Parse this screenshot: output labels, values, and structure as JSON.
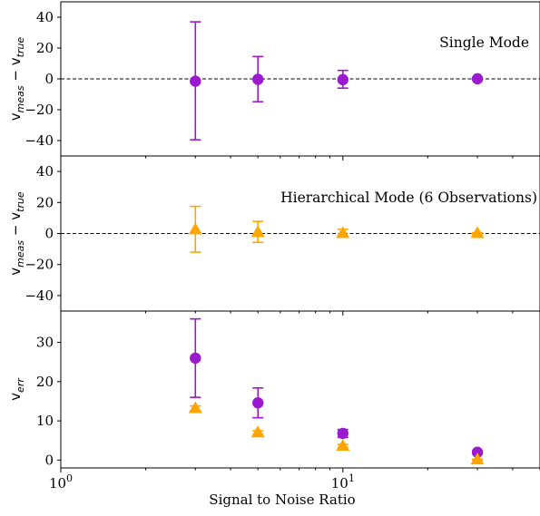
{
  "chart_data": [
    {
      "type": "scatter",
      "panel": "top",
      "title": "",
      "ylabel_parts": [
        "v",
        "meas",
        " − v",
        "true"
      ],
      "ylim": [
        -50,
        50
      ],
      "yticks": [
        -40,
        -20,
        0,
        20,
        40
      ],
      "ytick_labels": [
        "−40",
        "−20",
        "0",
        "20",
        "40"
      ],
      "x_scale": "log",
      "xlim": [
        1,
        50
      ],
      "reference_line": 0,
      "annotation": "Single Mode",
      "series": [
        {
          "marker": "circle",
          "color": "#9b19cf",
          "x": [
            3,
            5,
            10,
            30
          ],
          "y": [
            -1.5,
            -0.3,
            -0.5,
            0.1
          ],
          "yerr_low": [
            38,
            14.5,
            5.5,
            0.5
          ],
          "yerr_high": [
            38.5,
            14.8,
            6,
            0.5
          ]
        }
      ]
    },
    {
      "type": "scatter",
      "panel": "middle",
      "title": "",
      "ylabel_parts": [
        "v",
        "meas",
        " − v",
        "true"
      ],
      "ylim": [
        -50,
        50
      ],
      "yticks": [
        -40,
        -20,
        0,
        20,
        40
      ],
      "ytick_labels": [
        "−40",
        "−20",
        "0",
        "20",
        "40"
      ],
      "x_scale": "log",
      "xlim": [
        1,
        50
      ],
      "reference_line": 0,
      "annotation": "Hierarchical Mode (6 Observations)",
      "series": [
        {
          "marker": "triangle",
          "color": "#ffa500",
          "x": [
            3,
            5,
            10,
            30
          ],
          "y": [
            2.5,
            0.8,
            0.2,
            0.1
          ],
          "yerr_low": [
            14.5,
            6.5,
            2.5,
            0.4
          ],
          "yerr_high": [
            15,
            7,
            2.5,
            0.4
          ]
        }
      ]
    },
    {
      "type": "scatter",
      "panel": "bottom",
      "title": "",
      "ylabel_parts": [
        "v",
        "err",
        "",
        ""
      ],
      "ylim": [
        -2,
        38
      ],
      "yticks": [
        0,
        10,
        20,
        30
      ],
      "ytick_labels": [
        "0",
        "10",
        "20",
        "30"
      ],
      "x_scale": "log",
      "xlim": [
        1,
        50
      ],
      "xticks": [
        1,
        10
      ],
      "xtick_labels": [
        {
          "base": "10",
          "exp": "0"
        },
        {
          "base": "10",
          "exp": "1"
        }
      ],
      "xlabel": "Signal to Noise Ratio",
      "series": [
        {
          "marker": "circle",
          "color": "#9b19cf",
          "x": [
            3,
            5,
            10,
            30
          ],
          "y": [
            26,
            14.6,
            6.8,
            2
          ],
          "yerr_low": [
            10,
            3.8,
            1,
            0.3
          ],
          "yerr_high": [
            10,
            3.8,
            1,
            0.3
          ]
        },
        {
          "marker": "triangle",
          "color": "#ffa500",
          "x": [
            3,
            5,
            10,
            30
          ],
          "y": [
            13.2,
            7,
            3.6,
            0.1
          ],
          "yerr_low": [
            0.6,
            0.5,
            0.4,
            0.1
          ],
          "yerr_high": [
            0.6,
            0.5,
            0.4,
            0.1
          ]
        }
      ]
    }
  ]
}
